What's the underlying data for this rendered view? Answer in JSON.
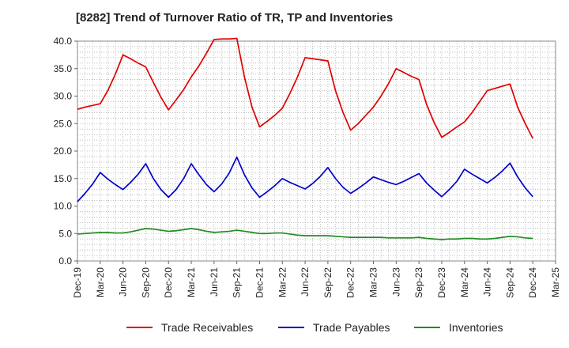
{
  "chart_data": {
    "type": "line",
    "title": "[8282]  Trend of Turnover Ratio of TR, TP and Inventories",
    "xlabel": "",
    "ylabel": "",
    "ylim": [
      0,
      40
    ],
    "yticks": [
      "0.0",
      "5.0",
      "10.0",
      "15.0",
      "20.0",
      "25.0",
      "30.0",
      "35.0",
      "40.0"
    ],
    "x_tick_labels": [
      "Dec-19",
      "Mar-20",
      "Jun-20",
      "Sep-20",
      "Dec-20",
      "Mar-21",
      "Jun-21",
      "Sep-21",
      "Dec-21",
      "Mar-22",
      "Jun-22",
      "Sep-22",
      "Dec-22",
      "Mar-23",
      "Jun-23",
      "Sep-23",
      "Dec-23",
      "Mar-24",
      "Jun-24",
      "Sep-24",
      "Dec-24",
      "Mar-25"
    ],
    "x": [
      "Dec-19",
      "Jan-20",
      "Feb-20",
      "Mar-20",
      "Apr-20",
      "May-20",
      "Jun-20",
      "Jul-20",
      "Aug-20",
      "Sep-20",
      "Oct-20",
      "Nov-20",
      "Dec-20",
      "Jan-21",
      "Feb-21",
      "Mar-21",
      "Apr-21",
      "May-21",
      "Jun-21",
      "Jul-21",
      "Aug-21",
      "Sep-21",
      "Oct-21",
      "Nov-21",
      "Dec-21",
      "Jan-22",
      "Feb-22",
      "Mar-22",
      "Apr-22",
      "May-22",
      "Jun-22",
      "Jul-22",
      "Aug-22",
      "Sep-22",
      "Oct-22",
      "Nov-22",
      "Dec-22",
      "Jan-23",
      "Feb-23",
      "Mar-23",
      "Apr-23",
      "May-23",
      "Jun-23",
      "Jul-23",
      "Aug-23",
      "Sep-23",
      "Oct-23",
      "Nov-23",
      "Dec-23",
      "Jan-24",
      "Feb-24",
      "Mar-24",
      "Apr-24",
      "May-24",
      "Jun-24",
      "Jul-24",
      "Aug-24",
      "Sep-24",
      "Oct-24",
      "Nov-24",
      "Dec-24"
    ],
    "series": [
      {
        "name": "Trade Receivables",
        "color": "#e00000",
        "values": [
          27.6,
          28.0,
          28.3,
          28.6,
          31.0,
          34.0,
          37.5,
          36.8,
          36.0,
          35.3,
          32.5,
          29.8,
          27.5,
          29.3,
          31.2,
          33.5,
          35.5,
          37.8,
          40.3,
          40.4,
          40.4,
          40.5,
          33.5,
          28.0,
          24.4,
          25.4,
          26.5,
          27.8,
          30.5,
          33.5,
          37.0,
          36.8,
          36.6,
          36.4,
          31.0,
          27.0,
          23.8,
          25.0,
          26.5,
          28.0,
          30.0,
          32.3,
          35.0,
          34.3,
          33.6,
          33.0,
          28.5,
          25.2,
          22.5,
          23.4,
          24.4,
          25.3,
          27.0,
          29.0,
          31.0,
          31.4,
          31.8,
          32.2,
          28.0,
          25.0,
          22.3
        ]
      },
      {
        "name": "Trade Payables",
        "color": "#0000cc",
        "values": [
          10.8,
          12.3,
          14.0,
          16.1,
          14.9,
          13.9,
          13.0,
          14.3,
          15.8,
          17.7,
          15.0,
          13.0,
          11.6,
          13.0,
          15.0,
          17.7,
          15.7,
          13.9,
          12.6,
          14.0,
          16.0,
          18.9,
          15.7,
          13.3,
          11.6,
          12.6,
          13.7,
          15.0,
          14.3,
          13.7,
          13.1,
          14.1,
          15.4,
          17.0,
          15.0,
          13.4,
          12.3,
          13.2,
          14.2,
          15.3,
          14.8,
          14.3,
          13.9,
          14.5,
          15.2,
          15.9,
          14.2,
          12.9,
          11.7,
          13.0,
          14.5,
          16.7,
          15.8,
          15.0,
          14.2,
          15.2,
          16.4,
          17.8,
          15.3,
          13.3,
          11.7
        ]
      },
      {
        "name": "Inventories",
        "color": "#228b22",
        "values": [
          4.9,
          5.0,
          5.1,
          5.2,
          5.2,
          5.1,
          5.1,
          5.3,
          5.6,
          5.9,
          5.8,
          5.6,
          5.4,
          5.5,
          5.7,
          5.9,
          5.7,
          5.4,
          5.2,
          5.3,
          5.4,
          5.6,
          5.4,
          5.2,
          5.0,
          5.0,
          5.1,
          5.1,
          4.9,
          4.7,
          4.6,
          4.6,
          4.6,
          4.6,
          4.5,
          4.4,
          4.3,
          4.3,
          4.3,
          4.3,
          4.3,
          4.2,
          4.2,
          4.2,
          4.2,
          4.3,
          4.1,
          4.0,
          3.9,
          4.0,
          4.0,
          4.1,
          4.1,
          4.0,
          4.0,
          4.1,
          4.3,
          4.5,
          4.4,
          4.2,
          4.1
        ]
      }
    ],
    "grid": true,
    "legend_position": "bottom"
  }
}
